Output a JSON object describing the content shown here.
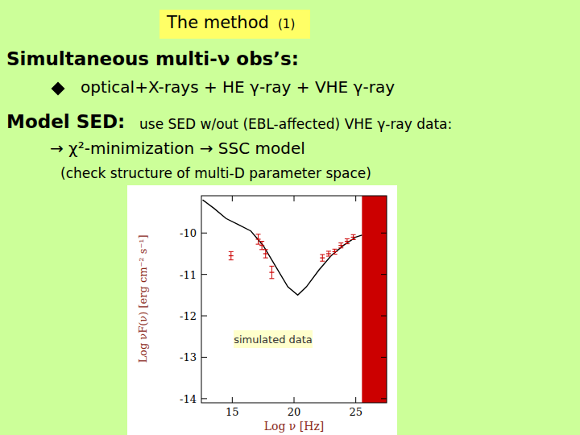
{
  "slide": {
    "title": "The method",
    "title_number": "(1)",
    "heading1": "Simultaneous multi-ν obs’s:",
    "bullet": "optical+X-rays + HE γ-ray + VHE γ-ray",
    "heading2": "Model SED:",
    "heading2_text": "use SED w/out (EBL-affected) VHE γ-ray data:",
    "steps": "→ χ²-minimization → SSC model",
    "note": "(check structure of multi-D parameter space)"
  },
  "chart_data": {
    "type": "line",
    "x_label": "Log ν [Hz]",
    "y_label": "Log νF(ν) [erg cm⁻² s⁻¹]",
    "annotations": [
      "simulated data"
    ],
    "xlim": [
      12.5,
      27.5
    ],
    "ylim": [
      -14.1,
      -9.1
    ],
    "xticks": [
      15,
      20,
      25
    ],
    "yticks": [
      -14,
      -13,
      -12,
      -11,
      -10
    ],
    "excluded_range": [
      25.5,
      27.5
    ],
    "series": [
      {
        "type": "line",
        "color": "#000000",
        "x": [
          12.6,
          13.5,
          14.5,
          15.5,
          16.5,
          17.5,
          18.5,
          19.5,
          20.3,
          21,
          22,
          23,
          24,
          25,
          25.5
        ],
        "values": [
          -9.2,
          -9.4,
          -9.65,
          -9.8,
          -9.95,
          -10.3,
          -10.8,
          -11.3,
          -11.5,
          -11.3,
          -10.9,
          -10.55,
          -10.3,
          -10.1,
          -10.05
        ]
      },
      {
        "type": "scatter",
        "color": "#cc0000",
        "marker": "cross",
        "x": [
          14.9,
          17.1,
          17.4,
          17.7,
          18.2,
          22.3,
          22.8,
          23.3,
          23.8,
          24.3,
          24.8
        ],
        "values": [
          -10.55,
          -10.15,
          -10.3,
          -10.5,
          -10.95,
          -10.6,
          -10.5,
          -10.45,
          -10.3,
          -10.2,
          -10.1
        ],
        "error": [
          0.1,
          0.12,
          0.1,
          0.1,
          0.15,
          0.08,
          0.06,
          0.06,
          0.06,
          0.06,
          0.06
        ]
      }
    ]
  }
}
